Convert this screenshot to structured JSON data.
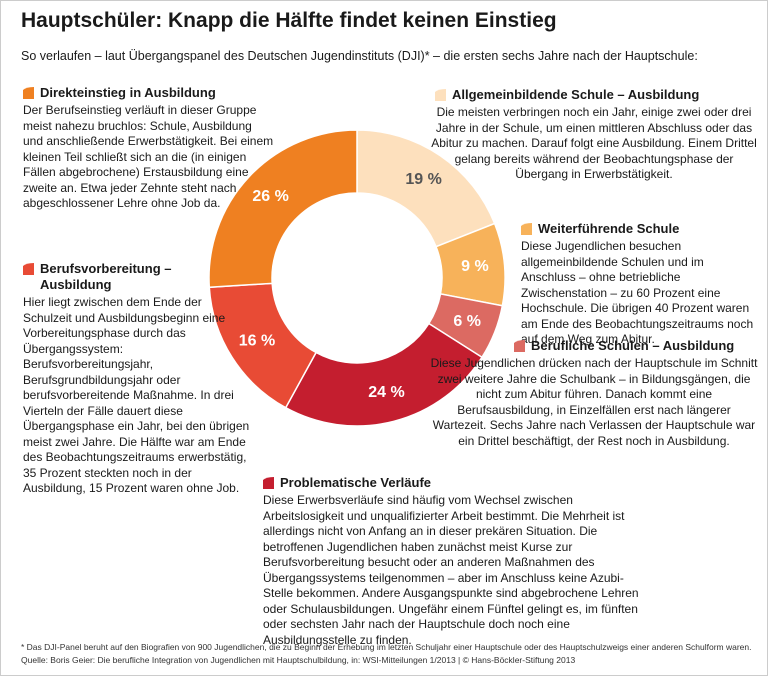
{
  "chart_data": {
    "type": "donut",
    "title": "Hauptschüler: Knapp die Hälfte findet keinen Einstieg",
    "subtitle": "So verlaufen – laut Übergangspanel des Deutschen Jugendinstituts (DJI)* – die ersten sechs Jahre nach der Hauptschule:",
    "categories": [
      "Allgemeinbildende Schule – Ausbildung",
      "Weiterführende Schule",
      "Berufliche Schulen – Ausbildung",
      "Problematische Verläufe",
      "Berufsvorbereitung – Ausbildung",
      "Direkteinstieg in Ausbildung"
    ],
    "values": [
      19,
      9,
      6,
      24,
      16,
      26
    ],
    "value_labels": [
      "19 %",
      "9 %",
      "6 %",
      "24 %",
      "16 %",
      "26 %"
    ],
    "colors": [
      "#fde0bd",
      "#f7b25a",
      "#dc6a62",
      "#c41e2f",
      "#e84b35",
      "#ef8021"
    ],
    "descriptions": [
      "Die meisten verbringen noch ein Jahr, einige zwei oder drei Jahre in der Schule, um einen mittleren Abschluss oder das Abitur zu machen. Darauf folgt eine Ausbildung. Einem Drittel gelang bereits während der Beobachtungsphase der Übergang in Erwerbstätigkeit.",
      "Diese Jugendlichen besuchen allgemeinbildende Schulen und im Anschluss – ohne betriebliche Zwischenstation – zu 60 Prozent eine Hochschule. Die übrigen 40 Prozent waren am Ende des Beobachtungszeitraums noch auf dem Weg zum Abitur.",
      "Diese Jugendlichen drücken nach der Hauptschule im Schnitt zwei weitere Jahre die Schulbank – in Bildungsgängen, die nicht zum Abitur führen. Danach kommt eine Berufsausbildung, in Einzelfällen erst nach längerer Wartezeit. Sechs Jahre nach Verlassen der Hauptschule war ein Drittel beschäftigt, der Rest noch in Ausbildung.",
      "Diese Erwerbsverläufe sind häufig vom Wechsel zwischen Arbeitslosigkeit und unqualifizierter Arbeit bestimmt. Die Mehrheit ist allerdings nicht von Anfang an in dieser prekären Situation. Die betroffenen Jugendlichen haben zunächst meist Kurse zur Berufsvorbereitung besucht oder an anderen Maßnahmen des Übergangssystems teilgenommen – aber im Anschluss keine Azubi-Stelle bekommen. Andere Ausgangspunkte sind abgebrochene Lehren oder Schulausbildungen. Ungefähr einem Fünftel gelingt es, im fünften oder sechsten Jahr nach der Hauptschule doch noch eine Ausbildungsstelle zu finden.",
      "Hier liegt zwischen dem Ende der Schulzeit und Ausbildungsbeginn eine Vorbereitungsphase durch das Übergangssystem: Berufsvorbereitungsjahr, Berufsgrundbildungsjahr oder berufsvorbereitende Maßnahme. In drei Vierteln der Fälle dauert diese Übergangsphase ein Jahr, bei den übrigen meist zwei Jahre. Die Hälfte war am Ende des Beobachtungszeitraums erwerbstätig, 35 Prozent steckten noch in der Ausbildung, 15 Prozent waren ohne Job.",
      "Der Berufseinstieg verläuft in dieser Gruppe meist nahezu bruchlos: Schule, Ausbildung und anschließende Erwerbstätigkeit. Bei einem kleinen Teil schließt sich an die (in einigen Fällen abgebrochene) Erstausbildung eine zweite an. Etwa jeder Zehnte steht nach abgeschlossener Lehre ohne Job da."
    ],
    "footnote": "* Das DJI-Panel beruht auf den Biografien von 900 Jugendlichen, die zu Beginn der Erhebung im letzten Schuljahr einer Hauptschule oder des Hauptschulzweigs einer anderen Schulform waren.",
    "source": "Quelle: Boris Geier: Die berufliche Integration von Jugendlichen mit Hauptschulbildung, in: WSI-Mitteilungen 1/2013 | © Hans-Böckler-Stiftung 2013"
  }
}
